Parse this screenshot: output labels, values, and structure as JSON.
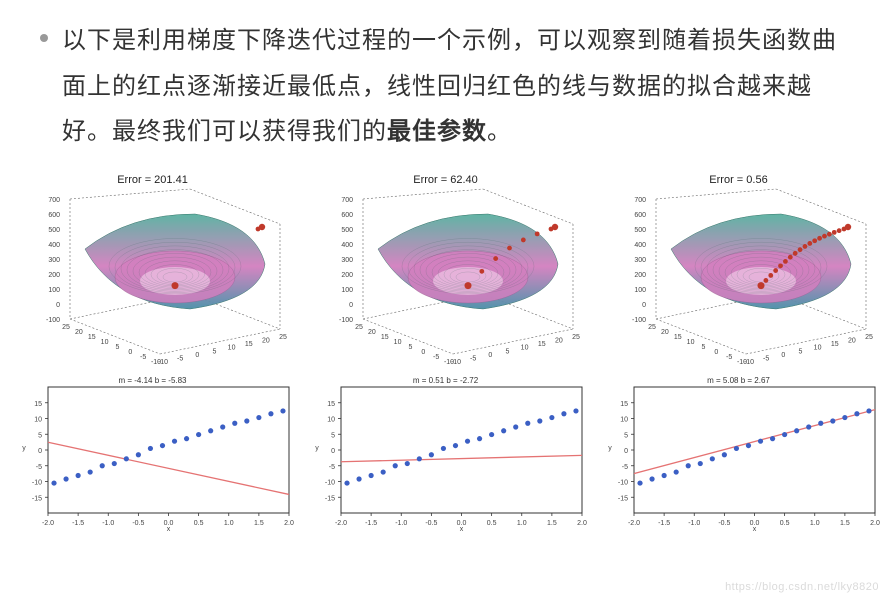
{
  "paragraph": {
    "pre": "以下是利用梯度下降迭代过程的一个示例，可以观察到随着损失函数曲面上的红点逐渐接近最低点，线性回归红色的线与数据的拟合越来越好。最终我们可以获得我们的",
    "bold": "最佳参数",
    "post": "。"
  },
  "bullet_color": "#999999",
  "text_color": "#333333",
  "watermark": "https://blog.csdn.net/lky8820",
  "columns": [
    {
      "error_label": "Error = 201.41",
      "surface": {
        "yticks": [
          "700",
          "600",
          "500",
          "400",
          "300",
          "200",
          "100",
          "0",
          "-100"
        ],
        "xticks_left": [
          "25",
          "20",
          "15",
          "10",
          "5",
          "0",
          "-5",
          "-10"
        ],
        "xticks_right": [
          "-10",
          "-5",
          "0",
          "5",
          "10",
          "15",
          "20",
          "25"
        ],
        "trail_len": 2,
        "colors": {
          "surface_top": "#58b0a0",
          "surface_mid": "#d37fbf",
          "surface_edge": "#4a8fa8",
          "red": "#c0392b",
          "axis": "#666666"
        }
      },
      "scatter": {
        "title": "m = -4.14   b = -5.83",
        "xlim": [
          -2.0,
          2.0
        ],
        "ylim": [
          -20,
          20
        ],
        "xticks": [
          "-2.0",
          "-1.5",
          "-1.0",
          "-0.5",
          "0.0",
          "0.5",
          "1.0",
          "1.5",
          "2.0"
        ],
        "yticks": [
          "15",
          "10",
          "5",
          "0",
          "-5",
          "-10",
          "-15"
        ],
        "line": {
          "m": -4.14,
          "b": -5.83,
          "color": "#e57373"
        },
        "point_color": "#3b5fc4",
        "points": [
          [
            -1.9,
            -10.5
          ],
          [
            -1.7,
            -9.2
          ],
          [
            -1.5,
            -8.1
          ],
          [
            -1.3,
            -7.0
          ],
          [
            -1.1,
            -5.0
          ],
          [
            -0.9,
            -4.3
          ],
          [
            -0.7,
            -2.8
          ],
          [
            -0.5,
            -1.5
          ],
          [
            -0.3,
            0.5
          ],
          [
            -0.1,
            1.4
          ],
          [
            0.1,
            2.8
          ],
          [
            0.3,
            3.6
          ],
          [
            0.5,
            4.9
          ],
          [
            0.7,
            6.1
          ],
          [
            0.9,
            7.3
          ],
          [
            1.1,
            8.5
          ],
          [
            1.3,
            9.2
          ],
          [
            1.5,
            10.3
          ],
          [
            1.7,
            11.5
          ],
          [
            1.9,
            12.4
          ]
        ]
      }
    },
    {
      "error_label": "Error = 62.40",
      "surface": {
        "yticks": [
          "700",
          "600",
          "500",
          "400",
          "300",
          "200",
          "100",
          "0",
          "-100"
        ],
        "xticks_left": [
          "25",
          "20",
          "15",
          "10",
          "5",
          "0",
          "-5",
          "-10"
        ],
        "xticks_right": [
          "-10",
          "-5",
          "0",
          "5",
          "10",
          "15",
          "20",
          "25"
        ],
        "trail_len": 7,
        "colors": {
          "surface_top": "#58b0a0",
          "surface_mid": "#d37fbf",
          "surface_edge": "#4a8fa8",
          "red": "#c0392b",
          "axis": "#666666"
        }
      },
      "scatter": {
        "title": "m = 0.51   b = -2.72",
        "xlim": [
          -2.0,
          2.0
        ],
        "ylim": [
          -20,
          20
        ],
        "xticks": [
          "-2.0",
          "-1.5",
          "-1.0",
          "-0.5",
          "0.0",
          "0.5",
          "1.0",
          "1.5",
          "2.0"
        ],
        "yticks": [
          "15",
          "10",
          "5",
          "0",
          "-5",
          "-10",
          "-15"
        ],
        "line": {
          "m": 0.51,
          "b": -2.72,
          "color": "#e57373"
        },
        "point_color": "#3b5fc4",
        "points": [
          [
            -1.9,
            -10.5
          ],
          [
            -1.7,
            -9.2
          ],
          [
            -1.5,
            -8.1
          ],
          [
            -1.3,
            -7.0
          ],
          [
            -1.1,
            -5.0
          ],
          [
            -0.9,
            -4.3
          ],
          [
            -0.7,
            -2.8
          ],
          [
            -0.5,
            -1.5
          ],
          [
            -0.3,
            0.5
          ],
          [
            -0.1,
            1.4
          ],
          [
            0.1,
            2.8
          ],
          [
            0.3,
            3.6
          ],
          [
            0.5,
            4.9
          ],
          [
            0.7,
            6.1
          ],
          [
            0.9,
            7.3
          ],
          [
            1.1,
            8.5
          ],
          [
            1.3,
            9.2
          ],
          [
            1.5,
            10.3
          ],
          [
            1.7,
            11.5
          ],
          [
            1.9,
            12.4
          ]
        ]
      }
    },
    {
      "error_label": "Error = 0.56",
      "surface": {
        "yticks": [
          "700",
          "600",
          "500",
          "400",
          "300",
          "200",
          "100",
          "0",
          "-100"
        ],
        "xticks_left": [
          "25",
          "20",
          "15",
          "10",
          "5",
          "0",
          "-5",
          "-10"
        ],
        "xticks_right": [
          "-10",
          "-5",
          "0",
          "5",
          "10",
          "15",
          "20",
          "25"
        ],
        "trail_len": 18,
        "colors": {
          "surface_top": "#58b0a0",
          "surface_mid": "#d37fbf",
          "surface_edge": "#4a8fa8",
          "red": "#c0392b",
          "axis": "#666666"
        }
      },
      "scatter": {
        "title": "m = 5.08   b = 2.67",
        "xlim": [
          -2.0,
          2.0
        ],
        "ylim": [
          -20,
          20
        ],
        "xticks": [
          "-2.0",
          "-1.5",
          "-1.0",
          "-0.5",
          "0.0",
          "0.5",
          "1.0",
          "1.5",
          "2.0"
        ],
        "yticks": [
          "15",
          "10",
          "5",
          "0",
          "-5",
          "-10",
          "-15"
        ],
        "line": {
          "m": 5.08,
          "b": 2.67,
          "color": "#e57373"
        },
        "point_color": "#3b5fc4",
        "points": [
          [
            -1.9,
            -10.5
          ],
          [
            -1.7,
            -9.2
          ],
          [
            -1.5,
            -8.1
          ],
          [
            -1.3,
            -7.0
          ],
          [
            -1.1,
            -5.0
          ],
          [
            -0.9,
            -4.3
          ],
          [
            -0.7,
            -2.8
          ],
          [
            -0.5,
            -1.5
          ],
          [
            -0.3,
            0.5
          ],
          [
            -0.1,
            1.4
          ],
          [
            0.1,
            2.8
          ],
          [
            0.3,
            3.6
          ],
          [
            0.5,
            4.9
          ],
          [
            0.7,
            6.1
          ],
          [
            0.9,
            7.3
          ],
          [
            1.1,
            8.5
          ],
          [
            1.3,
            9.2
          ],
          [
            1.5,
            10.3
          ],
          [
            1.7,
            11.5
          ],
          [
            1.9,
            12.4
          ]
        ]
      }
    }
  ]
}
